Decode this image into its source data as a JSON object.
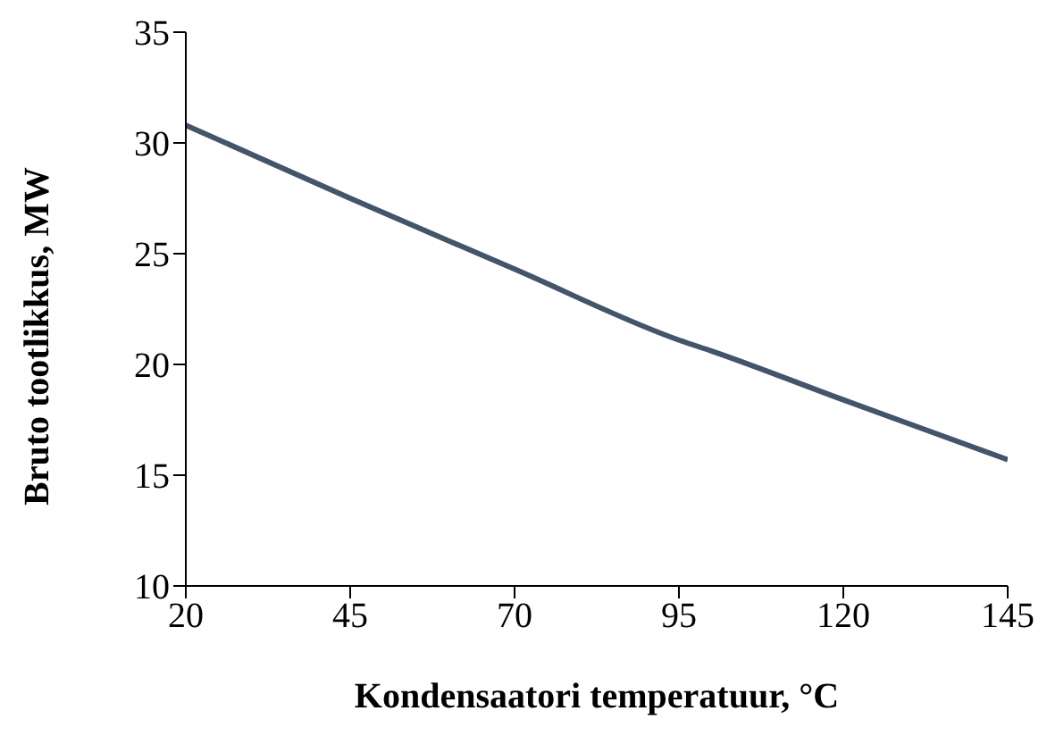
{
  "chart_data": {
    "type": "line",
    "xlabel": "Kondensaatori temperatuur, °C",
    "ylabel": "Bruto tootlikkus, MW",
    "x": [
      20,
      45,
      70,
      95,
      100,
      120,
      145
    ],
    "series": [
      {
        "color": "#44546a",
        "values": [
          30.8,
          27.5,
          24.3,
          21.1,
          20.6,
          18.4,
          15.7
        ]
      }
    ],
    "xlim": [
      20,
      145
    ],
    "xticks": [
      20,
      45,
      70,
      95,
      120,
      145
    ],
    "ylim": [
      10,
      35
    ],
    "yticks": [
      10,
      15,
      20,
      25,
      30,
      35
    ],
    "grid": false,
    "legend": false,
    "marker": "none",
    "line_style": "solid"
  }
}
